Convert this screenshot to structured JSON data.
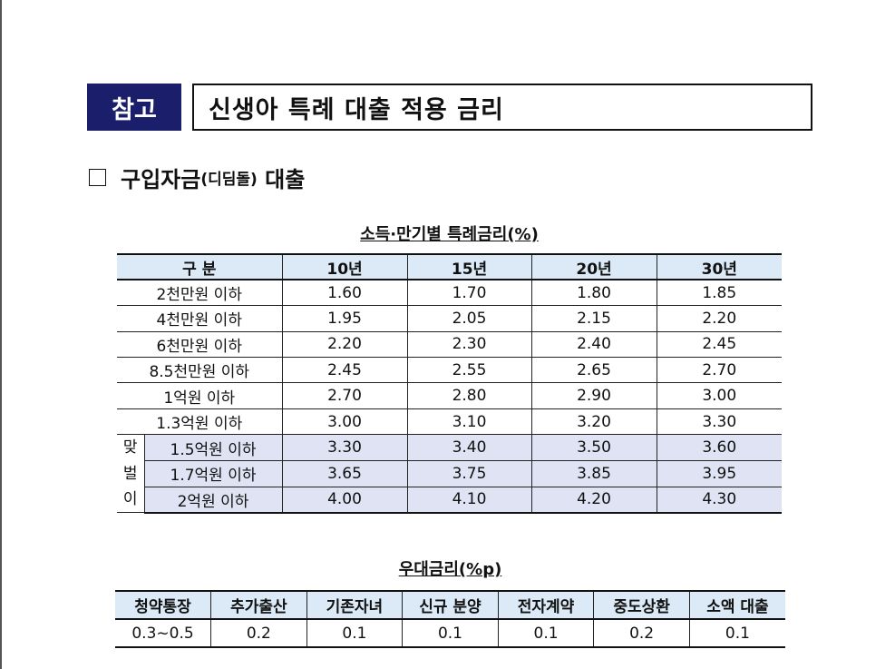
{
  "header": {
    "badge": "참고",
    "title": "신생아 특례 대출 적용 금리"
  },
  "section": {
    "title_main": "구입자금",
    "title_sub": "(디딤돌)",
    "title_tail": " 대출"
  },
  "rate_table": {
    "caption": "소득·만기별 특례금리(%)",
    "headers": [
      "구 분",
      "10년",
      "15년",
      "20년",
      "30년"
    ],
    "rows": [
      {
        "label": "2천만원 이하",
        "values": [
          "1.60",
          "1.70",
          "1.80",
          "1.85"
        ]
      },
      {
        "label": "4천만원 이하",
        "values": [
          "1.95",
          "2.05",
          "2.15",
          "2.20"
        ]
      },
      {
        "label": "6천만원 이하",
        "values": [
          "2.20",
          "2.30",
          "2.40",
          "2.45"
        ]
      },
      {
        "label": "8.5천만원 이하",
        "values": [
          "2.45",
          "2.55",
          "2.65",
          "2.70"
        ]
      },
      {
        "label": "1억원 이하",
        "values": [
          "2.70",
          "2.80",
          "2.90",
          "3.00"
        ]
      },
      {
        "label": "1.3억원 이하",
        "values": [
          "3.00",
          "3.10",
          "3.20",
          "3.30"
        ]
      }
    ],
    "dual_income_label": [
      "맞",
      "벌",
      "이"
    ],
    "dual_income_rows": [
      {
        "label": "1.5억원 이하",
        "values": [
          "3.30",
          "3.40",
          "3.50",
          "3.60"
        ]
      },
      {
        "label": "1.7억원 이하",
        "values": [
          "3.65",
          "3.75",
          "3.85",
          "3.95"
        ]
      },
      {
        "label": "2억원 이하",
        "values": [
          "4.00",
          "4.10",
          "4.20",
          "4.30"
        ]
      }
    ],
    "colors": {
      "header_bg": "#dbeaf6",
      "highlight_bg": "#dfe3f3"
    }
  },
  "pref_table": {
    "caption": "우대금리(%p)",
    "headers": [
      "청약통장",
      "추가출산",
      "기존자녀",
      "신규 분양",
      "전자계약",
      "중도상환",
      "소액 대출"
    ],
    "values": [
      "0.3~0.5",
      "0.2",
      "0.1",
      "0.1",
      "0.1",
      "0.2",
      "0.1"
    ]
  }
}
